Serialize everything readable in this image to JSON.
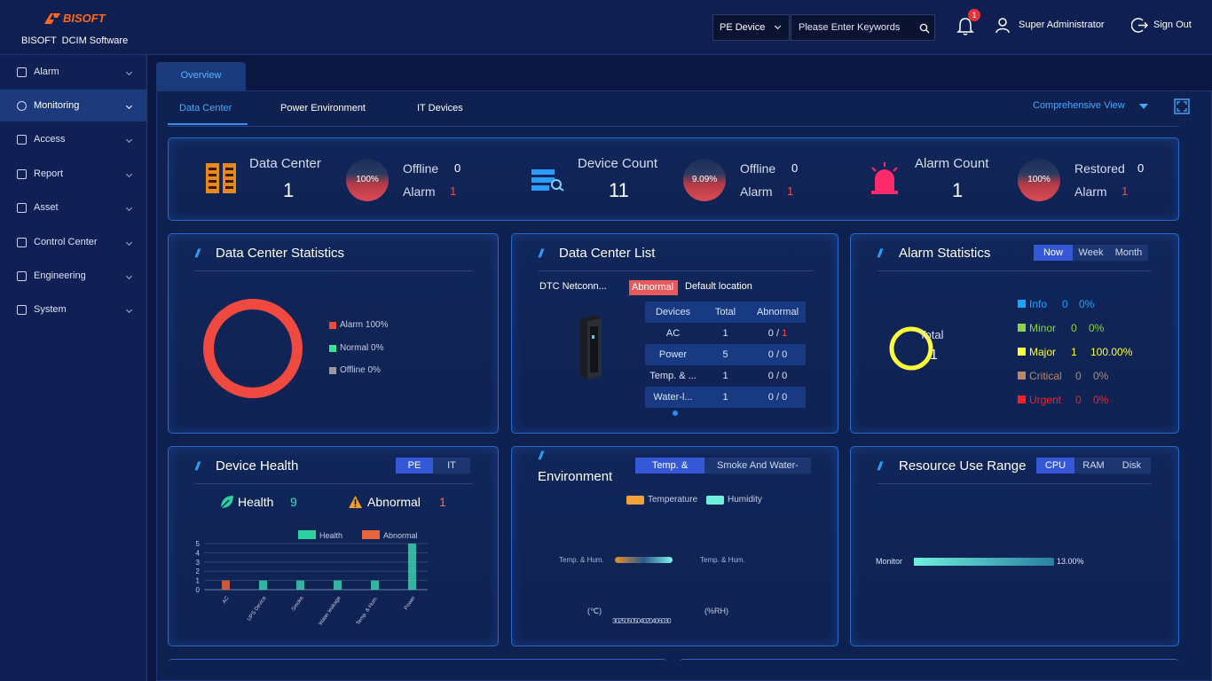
{
  "brand": {
    "logo_text": "BISOFT",
    "subtitle": "BISOFT  DCIM Software"
  },
  "header": {
    "device_select": "PE Device",
    "search_placeholder": "Please Enter Keywords",
    "notif_count": "1",
    "user": "Super Administrator",
    "signout": "Sign Out"
  },
  "sidebar": {
    "items": [
      {
        "label": "Alarm",
        "icon": "megaphone-icon"
      },
      {
        "label": "Monitoring",
        "icon": "dashboard-icon"
      },
      {
        "label": "Access",
        "icon": "lock-icon"
      },
      {
        "label": "Report",
        "icon": "chart-icon"
      },
      {
        "label": "Asset",
        "icon": "asset-icon"
      },
      {
        "label": "Control Center",
        "icon": "control-icon"
      },
      {
        "label": "Engineering",
        "icon": "list-icon"
      },
      {
        "label": "System",
        "icon": "grid-icon"
      }
    ]
  },
  "tabs": {
    "overview": "Overview",
    "sub": [
      "Data Center",
      "Power Environment",
      "IT Devices"
    ],
    "view": "Comprehensive View"
  },
  "summary": {
    "dc": {
      "label": "Data Center",
      "value": "1",
      "gauge": "100%",
      "offline_label": "Offline",
      "offline": "0",
      "alarm_label": "Alarm",
      "alarm": "1"
    },
    "device": {
      "label": "Device Count",
      "value": "11",
      "gauge": "9.09%",
      "offline_label": "Offline",
      "offline": "0",
      "alarm_label": "Alarm",
      "alarm": "1"
    },
    "alarm": {
      "label": "Alarm Count",
      "value": "1",
      "gauge": "100%",
      "restored_label": "Restored",
      "restored": "0",
      "alarm_label": "Alarm",
      "alarm": "1"
    }
  },
  "dc_stats": {
    "title": "Data Center Statistics",
    "legend": [
      "Alarm 100%",
      "Normal 0%",
      "Offline 0%"
    ]
  },
  "dc_list": {
    "title": "Data Center List",
    "name": "DTC Netconn...",
    "badge": "Abnormal",
    "location": "Default location",
    "headers": [
      "Devices",
      "Total",
      "Abnormal"
    ],
    "rows": [
      [
        "AC",
        "1",
        "0 /",
        "1"
      ],
      [
        "Power",
        "5",
        "0 / 0",
        ""
      ],
      [
        "Temp. & ...",
        "1",
        "0 / 0",
        ""
      ],
      [
        "Water-l...",
        "1",
        "0 / 0",
        ""
      ]
    ]
  },
  "alarm_stats": {
    "title": "Alarm Statistics",
    "tabs": [
      "Now",
      "Week",
      "Month"
    ],
    "center_label": "Total",
    "center_value": "1",
    "levels": [
      {
        "name": "Info",
        "count": "0",
        "pct": "0%",
        "color": "#1aa6ff"
      },
      {
        "name": "Minor",
        "count": "0",
        "pct": "0%",
        "color": "#8bd34a"
      },
      {
        "name": "Major",
        "count": "1",
        "pct": "100.00%",
        "color": "#ffff3a"
      },
      {
        "name": "Critical",
        "count": "0",
        "pct": "0%",
        "color": "#b98a6a"
      },
      {
        "name": "Urgent",
        "count": "0",
        "pct": "0%",
        "color": "#ff1f1f"
      }
    ]
  },
  "device_health": {
    "title": "Device Health",
    "tabs": [
      "PE",
      "IT"
    ],
    "health_label": "Health",
    "health": "9",
    "abnormal_label": "Abnormal",
    "abnormal": "1"
  },
  "environment": {
    "title": "Environment",
    "tabs": [
      "Temp. &",
      "Smoke And Water-"
    ],
    "legend": [
      "Temperature",
      "Humidity"
    ],
    "left_label": "Temp. & Hum.",
    "right_label": "Temp. & Hum.",
    "unit_left": "(℃)",
    "unit_right": "(%RH)",
    "ticks": "3025050504020406030"
  },
  "resource": {
    "title": "Resource Use Range",
    "tabs": [
      "CPU",
      "RAM",
      "Disk"
    ],
    "bar_label": "Monitor",
    "bar_value": "13.00%"
  },
  "chart_data": [
    {
      "type": "pie",
      "title": "",
      "categories": [
        "Alarm",
        "Normal",
        "Offline"
      ],
      "values": [
        100,
        0,
        0
      ]
    },
    {
      "type": "pie",
      "title": "",
      "categories": [
        "Info",
        "Minor",
        "Major",
        "Critical",
        "Urgent"
      ],
      "values": [
        0,
        0,
        1,
        0,
        0
      ]
    },
    {
      "type": "bar",
      "title": "",
      "categories": [
        "AC",
        "UPS Device",
        "Smoke",
        "Water leakage",
        "Temp. & Hum.",
        "Power"
      ],
      "series": [
        {
          "name": "Health",
          "values": [
            0,
            1,
            1,
            1,
            1,
            5
          ]
        },
        {
          "name": "Abnormal",
          "values": [
            1,
            0,
            0,
            0,
            0,
            0
          ]
        }
      ],
      "yticks": [
        "5",
        "4",
        "3",
        "2",
        "1",
        "0"
      ],
      "ylim": [
        0,
        5
      ]
    },
    {
      "type": "bar",
      "title": "",
      "categories": [
        "Monitor"
      ],
      "values": [
        13.0
      ]
    }
  ]
}
